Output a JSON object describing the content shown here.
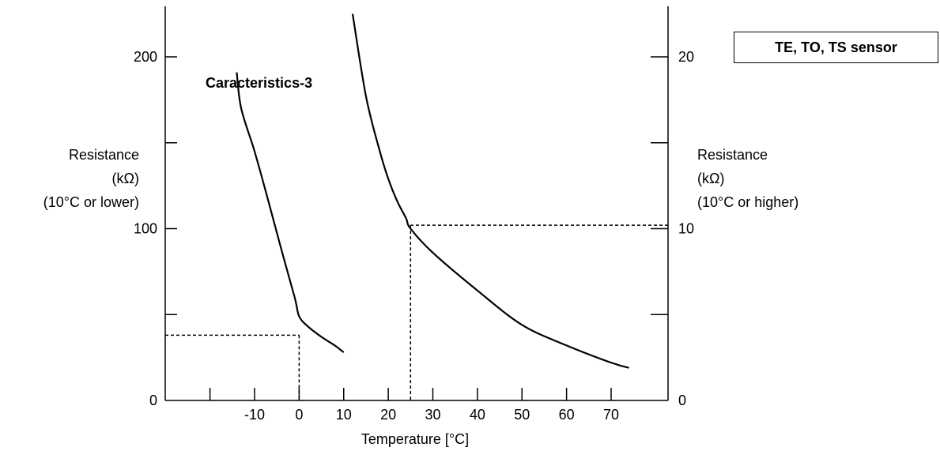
{
  "chart_data": {
    "type": "line",
    "title": "Caracteristics-3",
    "legend_box": "TE, TO, TS sensor",
    "xlabel": "Temperature [°C]",
    "ylabel_left": [
      "Resistance",
      "(kΩ)",
      "(10°C or lower)"
    ],
    "ylabel_right": [
      "Resistance",
      "(kΩ)",
      "(10°C or higher)"
    ],
    "x_ticks": [
      "-10",
      "0",
      "10",
      "20",
      "30",
      "40",
      "50",
      "60",
      "70"
    ],
    "x_tick_values": [
      -10,
      0,
      10,
      20,
      30,
      40,
      50,
      60,
      70
    ],
    "y_left_ticks": [
      "0",
      "100",
      "200"
    ],
    "y_left_tick_values": [
      0,
      100,
      200
    ],
    "y_right_ticks": [
      "0",
      "10",
      "20"
    ],
    "y_right_tick_values": [
      0,
      10,
      20
    ],
    "xlim": [
      -21,
      81
    ],
    "ylim_left": [
      0,
      230
    ],
    "ylim_right": [
      0,
      23
    ],
    "series": [
      {
        "axis": "left",
        "x": [
          -14,
          -13,
          -10,
          -7,
          -4,
          -1,
          0,
          2,
          5,
          8,
          10
        ],
        "y": [
          191,
          170,
          145,
          117,
          88,
          60,
          49,
          43,
          37,
          32,
          28
        ]
      },
      {
        "axis": "right",
        "x": [
          12,
          15,
          18,
          20,
          22,
          24,
          25,
          30,
          40,
          50,
          60,
          70,
          74
        ],
        "y": [
          22.5,
          17.7,
          14.6,
          12.9,
          11.6,
          10.6,
          10.0,
          8.6,
          6.4,
          4.4,
          3.2,
          2.2,
          1.9
        ]
      }
    ],
    "reference_lines": [
      {
        "axis": "left",
        "x": 0,
        "y": 38
      },
      {
        "axis": "right",
        "x": 25,
        "y": 10.2
      }
    ]
  }
}
